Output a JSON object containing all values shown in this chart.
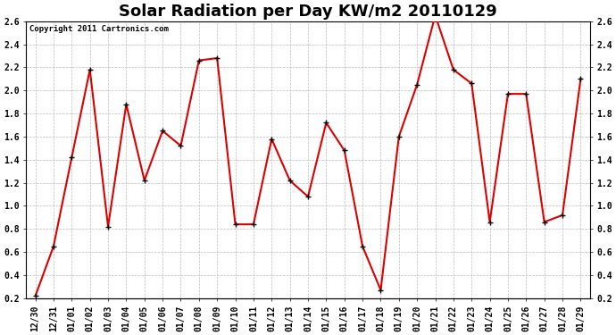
{
  "title": "Solar Radiation per Day KW/m2 20110129",
  "copyright": "Copyright 2011 Cartronics.com",
  "dates": [
    "12/30",
    "12/31",
    "01/01",
    "01/02",
    "01/03",
    "01/04",
    "01/05",
    "01/06",
    "01/07",
    "01/08",
    "01/09",
    "01/10",
    "01/11",
    "01/12",
    "01/13",
    "01/14",
    "01/15",
    "01/16",
    "01/17",
    "01/18",
    "01/19",
    "01/20",
    "01/21",
    "01/22",
    "01/23",
    "01/24",
    "01/25",
    "01/26",
    "01/27",
    "01/28",
    "01/29"
  ],
  "values": [
    0.22,
    0.65,
    1.42,
    2.18,
    0.82,
    1.88,
    1.22,
    1.65,
    1.52,
    2.26,
    2.28,
    0.84,
    0.84,
    1.58,
    1.22,
    1.08,
    1.72,
    1.48,
    0.65,
    0.27,
    1.6,
    2.05,
    2.65,
    2.18,
    2.06,
    0.86,
    1.97,
    1.97,
    0.86,
    0.92,
    2.1
  ],
  "line_color": "#dd0000",
  "marker": "+",
  "marker_color": "#000000",
  "bg_color": "#ffffff",
  "plot_bg_color": "#ffffff",
  "grid_color": "#bbbbbb",
  "ylim": [
    0.2,
    2.6
  ],
  "yticks": [
    0.2,
    0.4,
    0.6,
    0.8,
    1.0,
    1.2,
    1.4,
    1.6,
    1.8,
    2.0,
    2.2,
    2.4,
    2.6
  ],
  "title_fontsize": 13,
  "copyright_fontsize": 6.5,
  "tick_fontsize": 7,
  "line_width": 1.5,
  "marker_size": 5,
  "marker_edge_width": 1.0
}
